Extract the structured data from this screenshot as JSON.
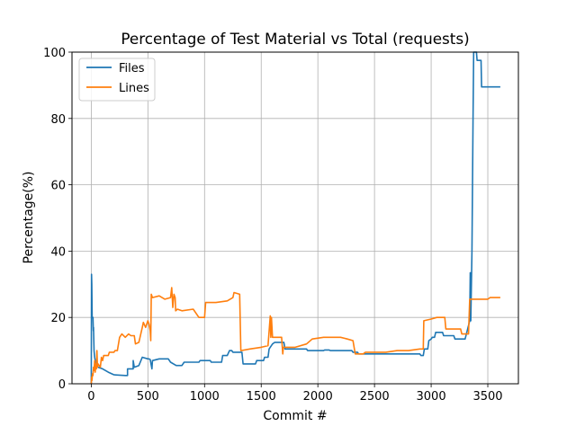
{
  "chart_data": {
    "type": "line",
    "title": "Percentage of Test Material vs Total (requests)",
    "xlabel": "Commit #",
    "ylabel": "Percentage(%)",
    "xlim": [
      -170,
      3770
    ],
    "ylim": [
      0,
      100
    ],
    "x_ticks": [
      0,
      500,
      1000,
      1500,
      2000,
      2500,
      3000,
      3500
    ],
    "y_ticks": [
      0,
      20,
      40,
      60,
      80,
      100
    ],
    "grid": true,
    "legend_position": "upper-left",
    "series": [
      {
        "name": "Files",
        "color": "#1f77b4",
        "points": [
          [
            0,
            0
          ],
          [
            2,
            33
          ],
          [
            5,
            30
          ],
          [
            8,
            20
          ],
          [
            15,
            20
          ],
          [
            18,
            16
          ],
          [
            20,
            17
          ],
          [
            25,
            10
          ],
          [
            30,
            8
          ],
          [
            40,
            6
          ],
          [
            60,
            5
          ],
          [
            100,
            4.5
          ],
          [
            150,
            3.5
          ],
          [
            200,
            2.7
          ],
          [
            250,
            2.6
          ],
          [
            300,
            2.5
          ],
          [
            320,
            2.5
          ],
          [
            320,
            4.5
          ],
          [
            370,
            4.5
          ],
          [
            370,
            7
          ],
          [
            380,
            5
          ],
          [
            420,
            5.5
          ],
          [
            450,
            8
          ],
          [
            500,
            7.5
          ],
          [
            510,
            7.5
          ],
          [
            520,
            7.3
          ],
          [
            535,
            4.5
          ],
          [
            540,
            7
          ],
          [
            600,
            7.5
          ],
          [
            680,
            7.5
          ],
          [
            700,
            6.5
          ],
          [
            750,
            5.5
          ],
          [
            800,
            5.5
          ],
          [
            820,
            6.5
          ],
          [
            950,
            6.5
          ],
          [
            960,
            7
          ],
          [
            1050,
            7
          ],
          [
            1060,
            6.5
          ],
          [
            1150,
            6.5
          ],
          [
            1160,
            8.5
          ],
          [
            1200,
            8.5
          ],
          [
            1220,
            10
          ],
          [
            1240,
            10
          ],
          [
            1250,
            9.5
          ],
          [
            1330,
            9.5
          ],
          [
            1340,
            6
          ],
          [
            1450,
            6
          ],
          [
            1460,
            7
          ],
          [
            1520,
            7
          ],
          [
            1530,
            8
          ],
          [
            1560,
            8
          ],
          [
            1570,
            10.5
          ],
          [
            1600,
            12
          ],
          [
            1620,
            12.5
          ],
          [
            1700,
            12.5
          ],
          [
            1710,
            10.5
          ],
          [
            1900,
            10.5
          ],
          [
            1910,
            10
          ],
          [
            2050,
            10
          ],
          [
            2060,
            10.2
          ],
          [
            2100,
            10.2
          ],
          [
            2110,
            10
          ],
          [
            2300,
            10
          ],
          [
            2310,
            9.5
          ],
          [
            2350,
            9.5
          ],
          [
            2360,
            9
          ],
          [
            2900,
            9
          ],
          [
            2910,
            8.5
          ],
          [
            2930,
            8.5
          ],
          [
            2940,
            10.5
          ],
          [
            2970,
            10.5
          ],
          [
            2980,
            13
          ],
          [
            3000,
            13.5
          ],
          [
            3010,
            14
          ],
          [
            3030,
            14
          ],
          [
            3040,
            15.5
          ],
          [
            3100,
            15.5
          ],
          [
            3110,
            14.5
          ],
          [
            3200,
            14.5
          ],
          [
            3210,
            13.5
          ],
          [
            3300,
            13.5
          ],
          [
            3340,
            19
          ],
          [
            3345,
            33.5
          ],
          [
            3350,
            19
          ],
          [
            3360,
            40
          ],
          [
            3365,
            60
          ],
          [
            3370,
            80
          ],
          [
            3375,
            100
          ],
          [
            3400,
            100
          ],
          [
            3405,
            97.5
          ],
          [
            3440,
            97.5
          ],
          [
            3445,
            89.5
          ],
          [
            3460,
            89.5
          ],
          [
            3610,
            89.5
          ]
        ]
      },
      {
        "name": "Lines",
        "color": "#ff7f0e",
        "points": [
          [
            0,
            0
          ],
          [
            3,
            2
          ],
          [
            6,
            1
          ],
          [
            10,
            3
          ],
          [
            15,
            2.5
          ],
          [
            20,
            5
          ],
          [
            25,
            4
          ],
          [
            30,
            7
          ],
          [
            35,
            3.5
          ],
          [
            40,
            6
          ],
          [
            45,
            4.5
          ],
          [
            50,
            10
          ],
          [
            55,
            5
          ],
          [
            60,
            6
          ],
          [
            80,
            5
          ],
          [
            90,
            8
          ],
          [
            100,
            7
          ],
          [
            110,
            8.5
          ],
          [
            150,
            8.5
          ],
          [
            160,
            9.5
          ],
          [
            200,
            9.5
          ],
          [
            210,
            10
          ],
          [
            230,
            10
          ],
          [
            250,
            14
          ],
          [
            270,
            15
          ],
          [
            300,
            14
          ],
          [
            330,
            15
          ],
          [
            350,
            14.5
          ],
          [
            380,
            14.5
          ],
          [
            390,
            12
          ],
          [
            420,
            12.5
          ],
          [
            450,
            17
          ],
          [
            460,
            18.5
          ],
          [
            480,
            17
          ],
          [
            500,
            19
          ],
          [
            510,
            18
          ],
          [
            520,
            16
          ],
          [
            525,
            13
          ],
          [
            530,
            27
          ],
          [
            540,
            26
          ],
          [
            600,
            26.5
          ],
          [
            650,
            25.5
          ],
          [
            700,
            26
          ],
          [
            710,
            29
          ],
          [
            720,
            23
          ],
          [
            730,
            27
          ],
          [
            740,
            26
          ],
          [
            745,
            22
          ],
          [
            760,
            22.5
          ],
          [
            800,
            22
          ],
          [
            900,
            22.5
          ],
          [
            950,
            20
          ],
          [
            1000,
            20
          ],
          [
            1010,
            24.5
          ],
          [
            1100,
            24.5
          ],
          [
            1200,
            25
          ],
          [
            1250,
            26
          ],
          [
            1260,
            27.5
          ],
          [
            1310,
            27
          ],
          [
            1320,
            10
          ],
          [
            1400,
            10.5
          ],
          [
            1500,
            11
          ],
          [
            1560,
            11.5
          ],
          [
            1580,
            20.5
          ],
          [
            1585,
            14
          ],
          [
            1590,
            20
          ],
          [
            1600,
            14
          ],
          [
            1680,
            14
          ],
          [
            1690,
            9
          ],
          [
            1695,
            11
          ],
          [
            1800,
            11
          ],
          [
            1900,
            12
          ],
          [
            1950,
            13.5
          ],
          [
            2050,
            14
          ],
          [
            2200,
            14
          ],
          [
            2260,
            13.5
          ],
          [
            2310,
            13
          ],
          [
            2330,
            9
          ],
          [
            2400,
            9
          ],
          [
            2420,
            9.5
          ],
          [
            2600,
            9.5
          ],
          [
            2700,
            10
          ],
          [
            2800,
            10
          ],
          [
            2900,
            10.5
          ],
          [
            2930,
            10.5
          ],
          [
            2935,
            19
          ],
          [
            3000,
            19.5
          ],
          [
            3050,
            20
          ],
          [
            3120,
            20
          ],
          [
            3130,
            16.5
          ],
          [
            3200,
            16.5
          ],
          [
            3260,
            16.5
          ],
          [
            3270,
            15
          ],
          [
            3330,
            15
          ],
          [
            3340,
            25.5
          ],
          [
            3420,
            25.5
          ],
          [
            3500,
            25.5
          ],
          [
            3520,
            26
          ],
          [
            3610,
            26
          ]
        ]
      }
    ]
  }
}
